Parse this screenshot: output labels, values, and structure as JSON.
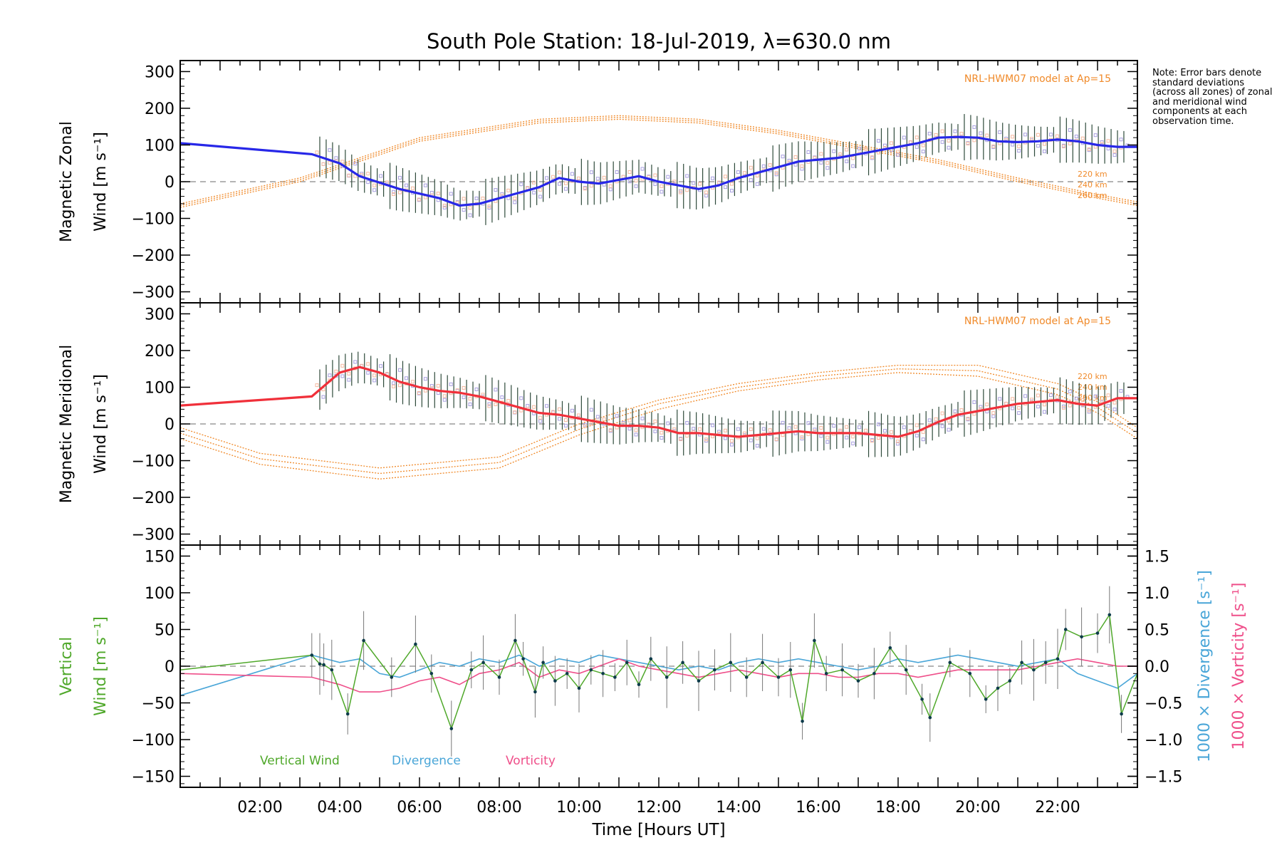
{
  "title": "South Pole Station: 18-Jul-2019, λ=630.0 nm",
  "note": "Note: Error bars denote standard deviations (across all zones) of zonal and meridional wind components at each observation time.",
  "model_label": "NRL-HWM07 model at Ap=15",
  "colors": {
    "zonal": "#2727e8",
    "meridional": "#f0303a",
    "vertical": "#4fa82a",
    "divergence": "#4aa6d8",
    "vorticity": "#ef4f8a",
    "model": "#f08a2a",
    "scatter": "#a8a0e0"
  },
  "chart_data": [
    {
      "type": "line",
      "panel": "zonal",
      "ylabel_line1": "Magnetic Zonal",
      "ylabel_line2": "Wind [m s⁻¹]",
      "ylim": [
        -330,
        330
      ],
      "yticks": [
        300,
        200,
        100,
        0,
        -100,
        -200,
        -300
      ],
      "model_altitudes": [
        "220 km",
        "240 km",
        "260 km"
      ],
      "series": [
        {
          "name": "Zonal wind",
          "x": [
            0.0,
            3.3,
            4.0,
            4.5,
            5.5,
            6.5,
            7.0,
            7.5,
            8.0,
            8.5,
            9.0,
            9.5,
            10.0,
            10.5,
            11.0,
            11.5,
            12.0,
            12.5,
            13.0,
            13.5,
            14.0,
            14.5,
            15.0,
            15.5,
            16.0,
            16.5,
            17.0,
            17.5,
            18.0,
            18.5,
            19.0,
            19.5,
            20.0,
            20.5,
            21.0,
            21.5,
            22.0,
            22.5,
            23.0,
            23.5,
            24.0
          ],
          "y": [
            105,
            75,
            50,
            15,
            -20,
            -45,
            -65,
            -60,
            -45,
            -30,
            -15,
            10,
            0,
            -5,
            5,
            15,
            0,
            -10,
            -20,
            -10,
            10,
            25,
            40,
            55,
            60,
            65,
            75,
            85,
            95,
            105,
            120,
            122,
            120,
            110,
            108,
            110,
            115,
            110,
            100,
            95,
            95
          ]
        }
      ],
      "model_series": [
        {
          "name": "220 km",
          "x": [
            0,
            3,
            6,
            9,
            11,
            13,
            15,
            17,
            19,
            21,
            23,
            24
          ],
          "y": [
            -70,
            0,
            110,
            160,
            170,
            160,
            130,
            90,
            50,
            0,
            -45,
            -65
          ]
        },
        {
          "name": "240 km",
          "x": [
            0,
            3,
            6,
            9,
            11,
            13,
            15,
            17,
            19,
            21,
            23,
            24
          ],
          "y": [
            -65,
            5,
            115,
            165,
            175,
            165,
            135,
            95,
            55,
            5,
            -40,
            -60
          ]
        },
        {
          "name": "260 km",
          "x": [
            0,
            3,
            6,
            9,
            11,
            13,
            15,
            17,
            19,
            21,
            23,
            24
          ],
          "y": [
            -60,
            10,
            120,
            170,
            180,
            170,
            140,
            100,
            60,
            10,
            -35,
            -55
          ]
        }
      ]
    },
    {
      "type": "line",
      "panel": "meridional",
      "ylabel_line1": "Magnetic Meridional",
      "ylabel_line2": "Wind [m s⁻¹]",
      "ylim": [
        -330,
        330
      ],
      "yticks": [
        300,
        200,
        100,
        0,
        -100,
        -200,
        -300
      ],
      "model_altitudes": [
        "220 km",
        "240 km",
        "260 km"
      ],
      "series": [
        {
          "name": "Meridional wind",
          "x": [
            0.0,
            3.3,
            4.0,
            4.5,
            5.0,
            5.5,
            6.0,
            6.5,
            7.0,
            7.5,
            8.0,
            8.5,
            9.0,
            9.5,
            10.0,
            10.5,
            11.0,
            11.5,
            12.0,
            12.5,
            13.0,
            13.5,
            14.0,
            14.5,
            15.0,
            15.5,
            16.0,
            16.5,
            17.0,
            17.5,
            18.0,
            18.5,
            19.0,
            19.5,
            20.0,
            20.5,
            21.0,
            21.5,
            22.0,
            22.5,
            23.0,
            23.5,
            24.0
          ],
          "y": [
            50,
            75,
            140,
            155,
            140,
            115,
            100,
            90,
            85,
            75,
            60,
            45,
            30,
            25,
            15,
            5,
            -5,
            -5,
            -10,
            -25,
            -25,
            -30,
            -35,
            -30,
            -25,
            -20,
            -25,
            -25,
            -25,
            -30,
            -35,
            -20,
            5,
            25,
            35,
            45,
            55,
            60,
            65,
            55,
            50,
            70,
            70
          ]
        }
      ],
      "model_series": [
        {
          "name": "220 km",
          "x": [
            0,
            2,
            5,
            8,
            10,
            12,
            14,
            16,
            18,
            20,
            22,
            23,
            24
          ],
          "y": [
            -40,
            -110,
            -150,
            -120,
            -30,
            40,
            90,
            120,
            140,
            130,
            80,
            30,
            -40
          ]
        },
        {
          "name": "240 km",
          "x": [
            0,
            2,
            5,
            8,
            10,
            12,
            14,
            16,
            18,
            20,
            22,
            23,
            24
          ],
          "y": [
            -25,
            -95,
            -135,
            -105,
            -15,
            55,
            100,
            130,
            150,
            145,
            95,
            45,
            -25
          ]
        },
        {
          "name": "260 km",
          "x": [
            0,
            2,
            5,
            8,
            10,
            12,
            14,
            16,
            18,
            20,
            22,
            23,
            24
          ],
          "y": [
            -10,
            -80,
            -120,
            -90,
            0,
            65,
            110,
            140,
            160,
            160,
            110,
            60,
            -10
          ]
        }
      ]
    },
    {
      "type": "line",
      "panel": "vertical",
      "ylabel_line1": "Vertical",
      "ylabel_line2": "Wind [m s⁻¹]",
      "y2label_div": "1000 × Divergence [s⁻¹]",
      "y2label_vort": "1000 × Vorticity [s⁻¹]",
      "ylim": [
        -165,
        165
      ],
      "yticks": [
        150,
        100,
        50,
        0,
        -50,
        -100,
        -150
      ],
      "y2lim": [
        -1.65,
        1.65
      ],
      "y2ticks": [
        1.5,
        1.0,
        0.5,
        0.0,
        -0.5,
        -1.0,
        -1.5
      ],
      "y2tick_labels": [
        "1.5",
        "1.0",
        "0.5",
        "0.0",
        "−0.5",
        "−1.0",
        "−1.5"
      ],
      "legend": [
        "Vertical Wind",
        "Divergence",
        "Vorticity"
      ],
      "series": [
        {
          "name": "Vertical Wind",
          "x": [
            0.0,
            3.3,
            3.5,
            3.6,
            3.8,
            4.2,
            4.6,
            5.3,
            5.9,
            6.3,
            6.8,
            7.3,
            7.6,
            8.0,
            8.4,
            8.6,
            8.9,
            9.1,
            9.4,
            9.7,
            10.0,
            10.3,
            10.6,
            10.9,
            11.2,
            11.5,
            11.8,
            12.2,
            12.6,
            13.0,
            13.4,
            13.8,
            14.2,
            14.6,
            15.0,
            15.3,
            15.6,
            15.9,
            16.2,
            16.6,
            17.0,
            17.4,
            17.8,
            18.2,
            18.6,
            18.8,
            19.3,
            19.8,
            20.2,
            20.5,
            20.8,
            21.1,
            21.4,
            21.7,
            22.0,
            22.2,
            22.6,
            23.0,
            23.3,
            23.6,
            24.0
          ],
          "y": [
            -5,
            15,
            3,
            2,
            -5,
            -65,
            35,
            -15,
            30,
            -10,
            -85,
            -5,
            5,
            -15,
            35,
            10,
            -35,
            5,
            -20,
            -10,
            -30,
            -5,
            -10,
            -15,
            5,
            -25,
            10,
            -15,
            5,
            -20,
            -5,
            5,
            -15,
            5,
            -15,
            -5,
            -75,
            35,
            -10,
            -5,
            -20,
            -10,
            25,
            -5,
            -45,
            -70,
            5,
            -10,
            -45,
            -30,
            -20,
            5,
            -5,
            5,
            10,
            50,
            40,
            45,
            70,
            -65,
            -10
          ]
        },
        {
          "name": "Divergence",
          "x": [
            0.0,
            3.3,
            4.0,
            4.5,
            5.0,
            5.5,
            6.0,
            6.5,
            7.0,
            7.5,
            8.0,
            8.5,
            9.0,
            9.5,
            10.0,
            10.5,
            11.0,
            11.5,
            12.0,
            12.5,
            13.0,
            13.5,
            14.0,
            14.5,
            15.0,
            15.5,
            16.0,
            16.5,
            17.0,
            17.5,
            18.0,
            18.5,
            19.0,
            19.5,
            20.0,
            20.5,
            21.0,
            21.5,
            22.0,
            22.5,
            23.0,
            23.5,
            24.0
          ],
          "y": [
            -0.4,
            0.15,
            0.05,
            0.1,
            -0.1,
            -0.15,
            -0.05,
            0.05,
            0.0,
            0.1,
            0.05,
            0.15,
            0.0,
            0.1,
            0.05,
            0.15,
            0.1,
            0.05,
            0.0,
            -0.05,
            0.0,
            -0.05,
            0.05,
            0.1,
            0.05,
            0.1,
            0.05,
            0.0,
            -0.05,
            0.0,
            0.1,
            0.05,
            0.1,
            0.15,
            0.1,
            0.05,
            0.0,
            0.05,
            0.1,
            -0.1,
            -0.2,
            -0.3,
            -0.1
          ]
        },
        {
          "name": "Vorticity",
          "x": [
            0.0,
            3.3,
            4.0,
            4.5,
            5.0,
            5.5,
            6.0,
            6.5,
            7.0,
            7.5,
            8.0,
            8.5,
            9.0,
            9.5,
            10.0,
            10.5,
            11.0,
            11.5,
            12.0,
            12.5,
            13.0,
            13.5,
            14.0,
            14.5,
            15.0,
            15.5,
            16.0,
            16.5,
            17.0,
            17.5,
            18.0,
            18.5,
            19.0,
            19.5,
            20.0,
            20.5,
            21.0,
            21.5,
            22.0,
            22.5,
            23.0,
            23.5,
            24.0
          ],
          "y": [
            -0.1,
            -0.15,
            -0.25,
            -0.35,
            -0.35,
            -0.3,
            -0.2,
            -0.15,
            -0.25,
            -0.1,
            -0.05,
            0.05,
            -0.15,
            -0.05,
            -0.1,
            0.0,
            0.1,
            0.0,
            -0.05,
            -0.1,
            -0.15,
            -0.1,
            -0.05,
            -0.1,
            -0.15,
            -0.1,
            -0.1,
            -0.15,
            -0.15,
            -0.1,
            -0.1,
            -0.15,
            -0.1,
            -0.05,
            -0.05,
            -0.05,
            -0.05,
            0.0,
            0.05,
            0.1,
            0.05,
            0.0,
            0.0
          ]
        }
      ]
    }
  ],
  "x_axis": {
    "label": "Time [Hours UT]",
    "xlim": [
      0,
      24
    ],
    "ticks": [
      2,
      4,
      6,
      8,
      10,
      12,
      14,
      16,
      18,
      20,
      22
    ],
    "tick_labels": [
      "02:00",
      "04:00",
      "06:00",
      "08:00",
      "10:00",
      "12:00",
      "14:00",
      "16:00",
      "18:00",
      "20:00",
      "22:00"
    ]
  }
}
